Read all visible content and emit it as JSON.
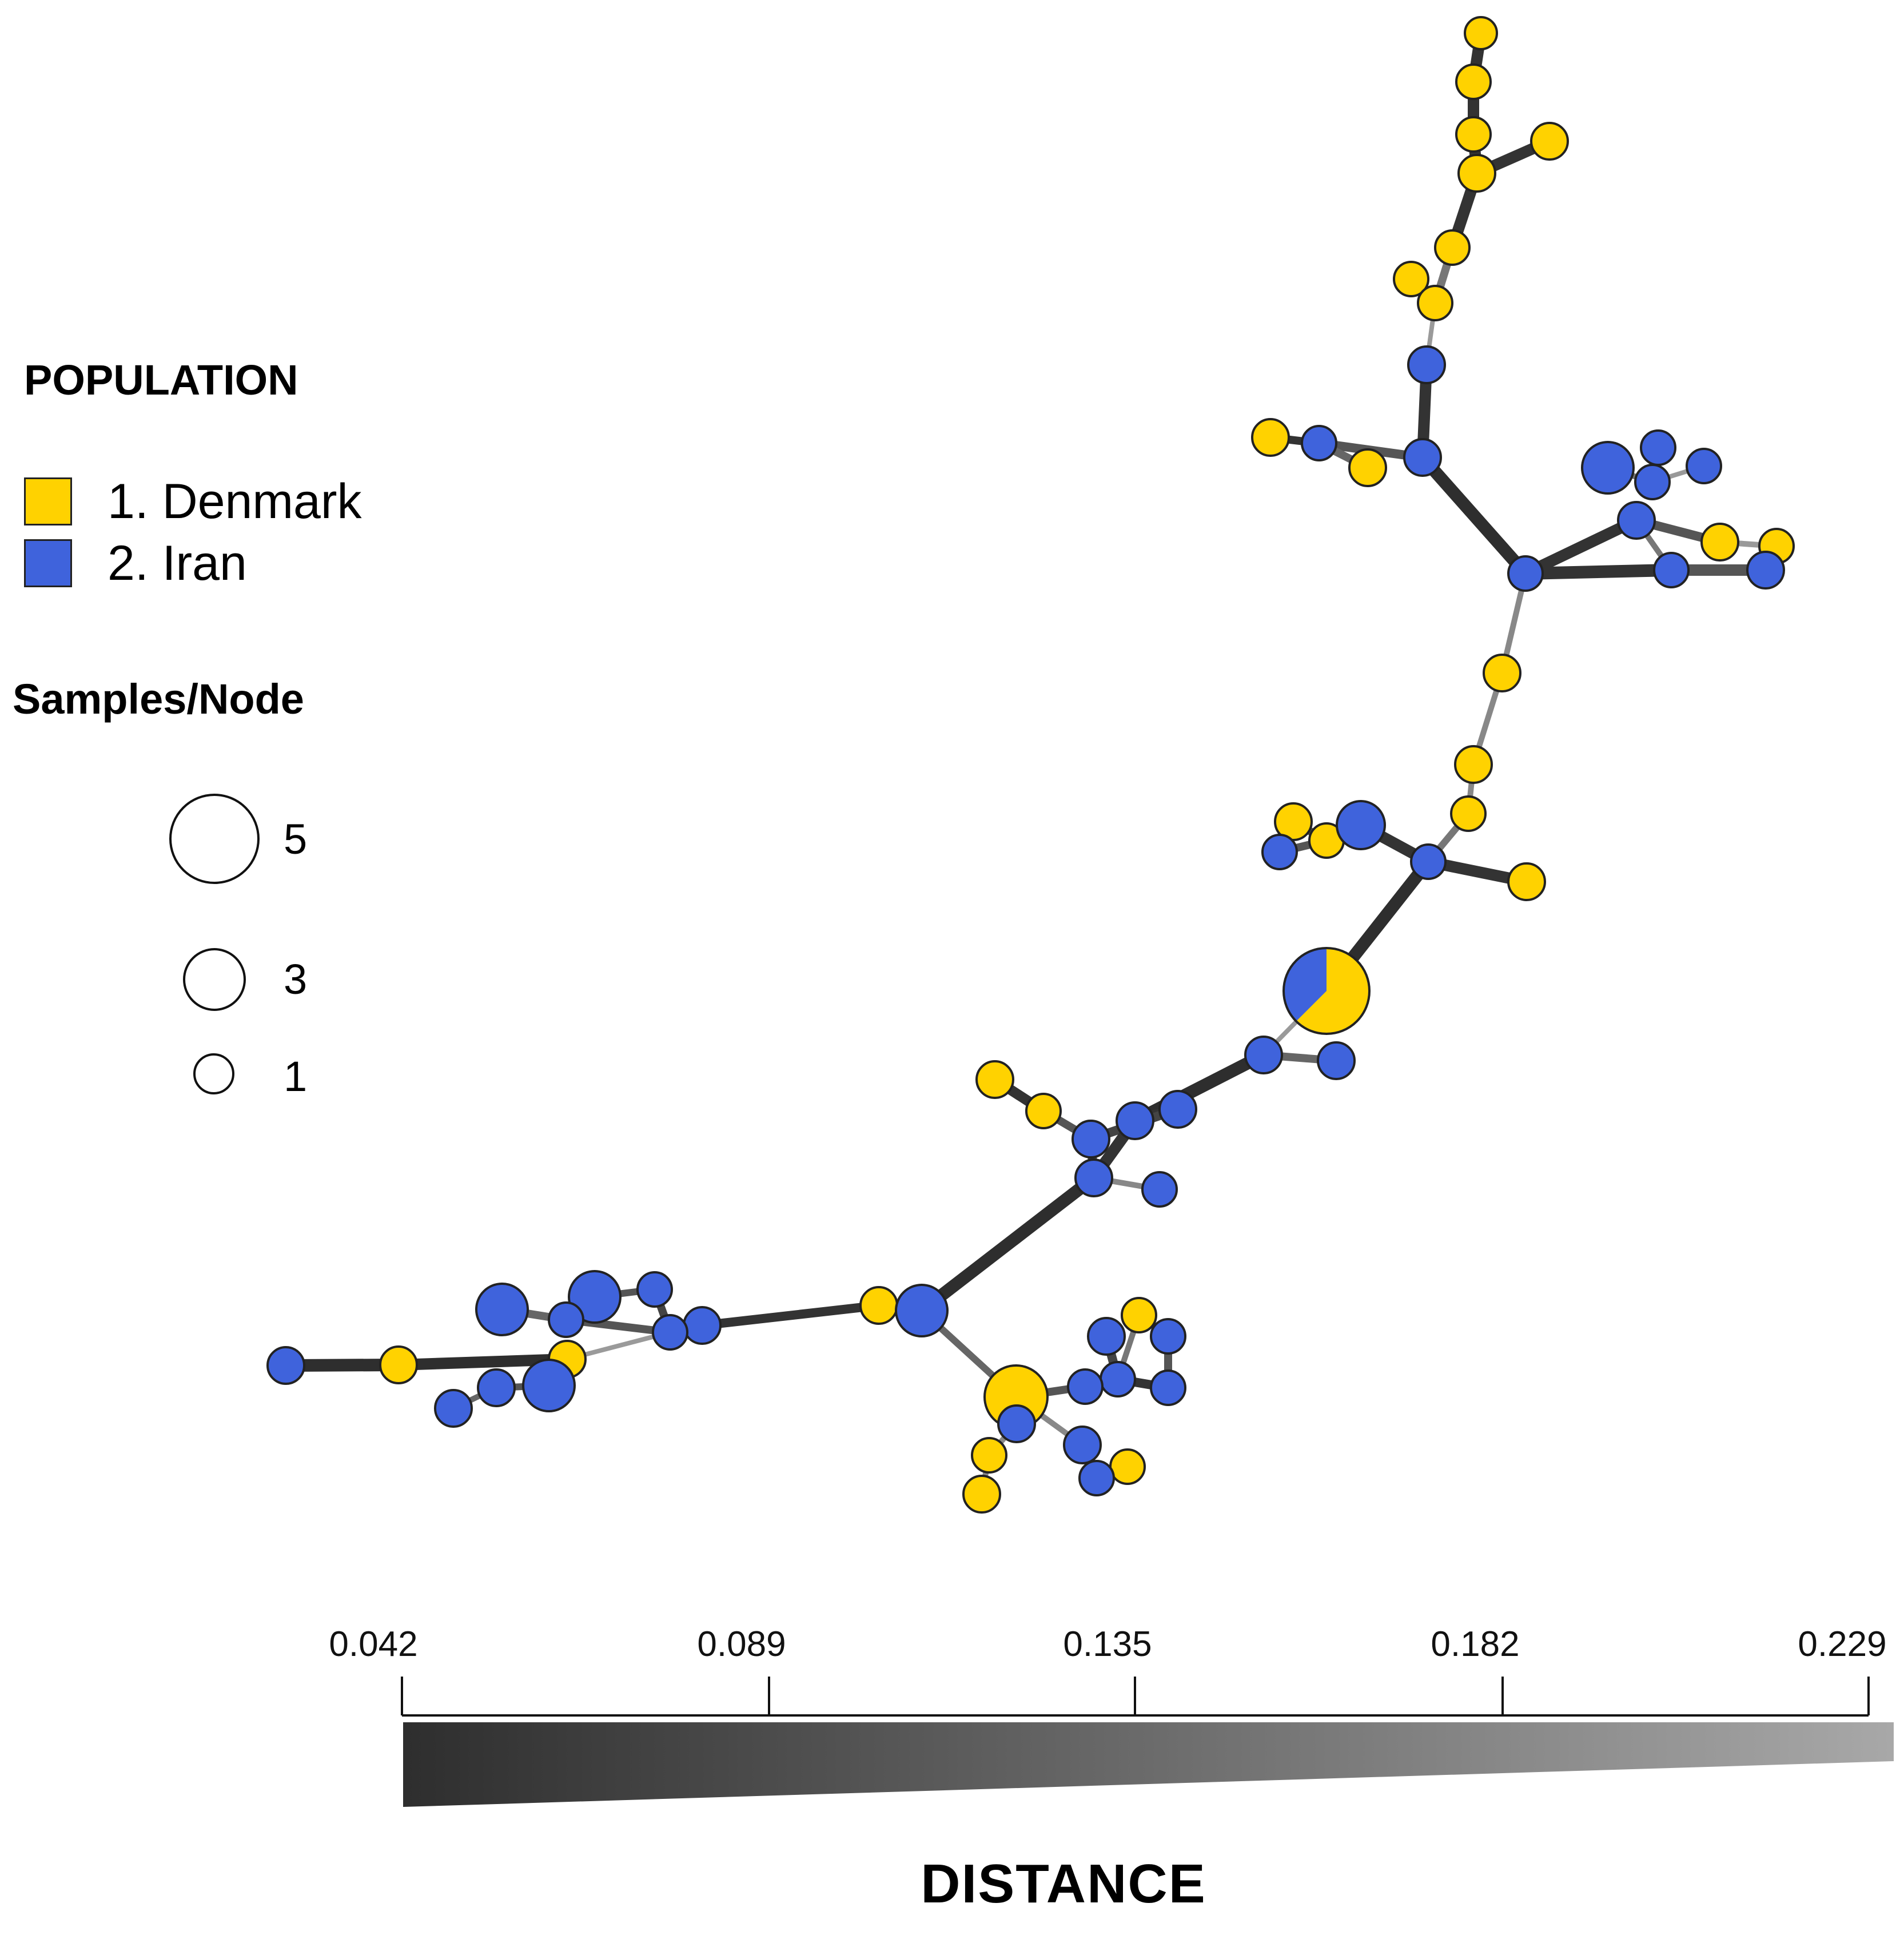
{
  "legend": {
    "population_title": "POPULATION",
    "populations": [
      {
        "label": "1. Denmark",
        "color": "#FFD200"
      },
      {
        "label": "2. Iran",
        "color": "#3F63DC"
      }
    ],
    "samples_title": "Samples/Node",
    "sizes": [
      {
        "label": "5",
        "samples": 5
      },
      {
        "label": "3",
        "samples": 3
      },
      {
        "label": "1",
        "samples": 1
      }
    ]
  },
  "distance_scale": {
    "title": "DISTANCE",
    "ticks": [
      "0.042",
      "0.089",
      "0.135",
      "0.182",
      "0.229"
    ],
    "min": 0.042,
    "max": 0.229,
    "dark_color": "#2e2e2e",
    "light_color": "#a8a8a8"
  }
}
